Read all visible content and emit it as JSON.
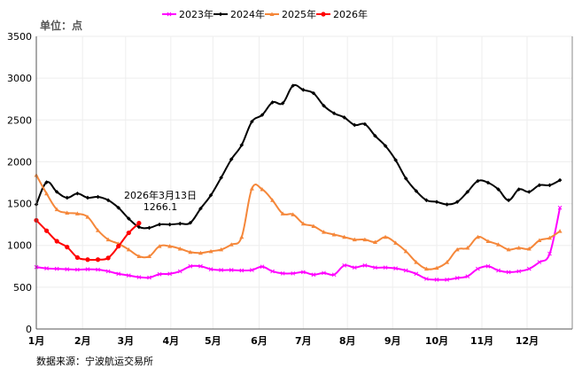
{
  "chart_data": {
    "type": "line",
    "unit_label": "单位：点",
    "source": "数据来源：宁波航运交易所",
    "ylim": [
      0,
      3500
    ],
    "yticks": [
      0,
      500,
      1000,
      1500,
      2000,
      2500,
      3000,
      3500
    ],
    "xlabel_unit": "week index",
    "xlim": [
      0,
      52.2
    ],
    "months": [
      {
        "label": "1月",
        "week": 0
      },
      {
        "label": "2月",
        "week": 4.5
      },
      {
        "label": "3月",
        "week": 8.7
      },
      {
        "label": "4月",
        "week": 13.1
      },
      {
        "label": "5月",
        "week": 17.2
      },
      {
        "label": "6月",
        "week": 21.7
      },
      {
        "label": "7月",
        "week": 26
      },
      {
        "label": "8月",
        "week": 30.3
      },
      {
        "label": "9月",
        "week": 34.7
      },
      {
        "label": "10月",
        "week": 39
      },
      {
        "label": "11月",
        "week": 43.4
      },
      {
        "label": "12月",
        "week": 47.8
      }
    ],
    "legend_position": "top-right",
    "series": [
      {
        "name": "2023年",
        "color": "#ff00ff",
        "marker": "x",
        "values": [
          740,
          725,
          720,
          715,
          710,
          715,
          710,
          690,
          660,
          640,
          620,
          615,
          655,
          660,
          690,
          750,
          750,
          715,
          705,
          705,
          700,
          705,
          745,
          690,
          665,
          665,
          680,
          650,
          670,
          650,
          760,
          735,
          760,
          735,
          735,
          725,
          700,
          660,
          600,
          590,
          590,
          610,
          630,
          720,
          750,
          700,
          680,
          690,
          720,
          800,
          900,
          1450
        ]
      },
      {
        "name": "2024年",
        "color": "#000000",
        "marker": "diamond",
        "values": [
          1490,
          1755,
          1640,
          1570,
          1620,
          1570,
          1580,
          1540,
          1450,
          1320,
          1220,
          1210,
          1250,
          1250,
          1260,
          1270,
          1440,
          1600,
          1810,
          2030,
          2200,
          2480,
          2560,
          2710,
          2700,
          2910,
          2860,
          2820,
          2670,
          2580,
          2530,
          2440,
          2450,
          2310,
          2190,
          2020,
          1800,
          1650,
          1540,
          1520,
          1490,
          1520,
          1640,
          1770,
          1750,
          1670,
          1540,
          1670,
          1640,
          1720,
          1720,
          1780
        ]
      },
      {
        "name": "2025年",
        "color": "#f5873a",
        "marker": "triangle",
        "values": [
          1840,
          1620,
          1430,
          1390,
          1380,
          1340,
          1180,
          1070,
          1020,
          950,
          870,
          870,
          990,
          990,
          960,
          920,
          910,
          930,
          950,
          1010,
          1100,
          1680,
          1670,
          1540,
          1380,
          1370,
          1260,
          1230,
          1160,
          1130,
          1100,
          1070,
          1070,
          1040,
          1100,
          1030,
          930,
          800,
          720,
          730,
          800,
          950,
          970,
          1100,
          1050,
          1010,
          950,
          970,
          960,
          1060,
          1090,
          1170
        ]
      },
      {
        "name": "2026年",
        "color": "#ff0000",
        "marker": "circle",
        "values": [
          1300,
          1175,
          1050,
          980,
          855,
          830,
          830,
          850,
          990,
          1150,
          1266.1
        ]
      }
    ],
    "annotation": {
      "line1": "2026年3月13日",
      "line2": "1266.1",
      "series": "2026年",
      "index": 10
    }
  }
}
